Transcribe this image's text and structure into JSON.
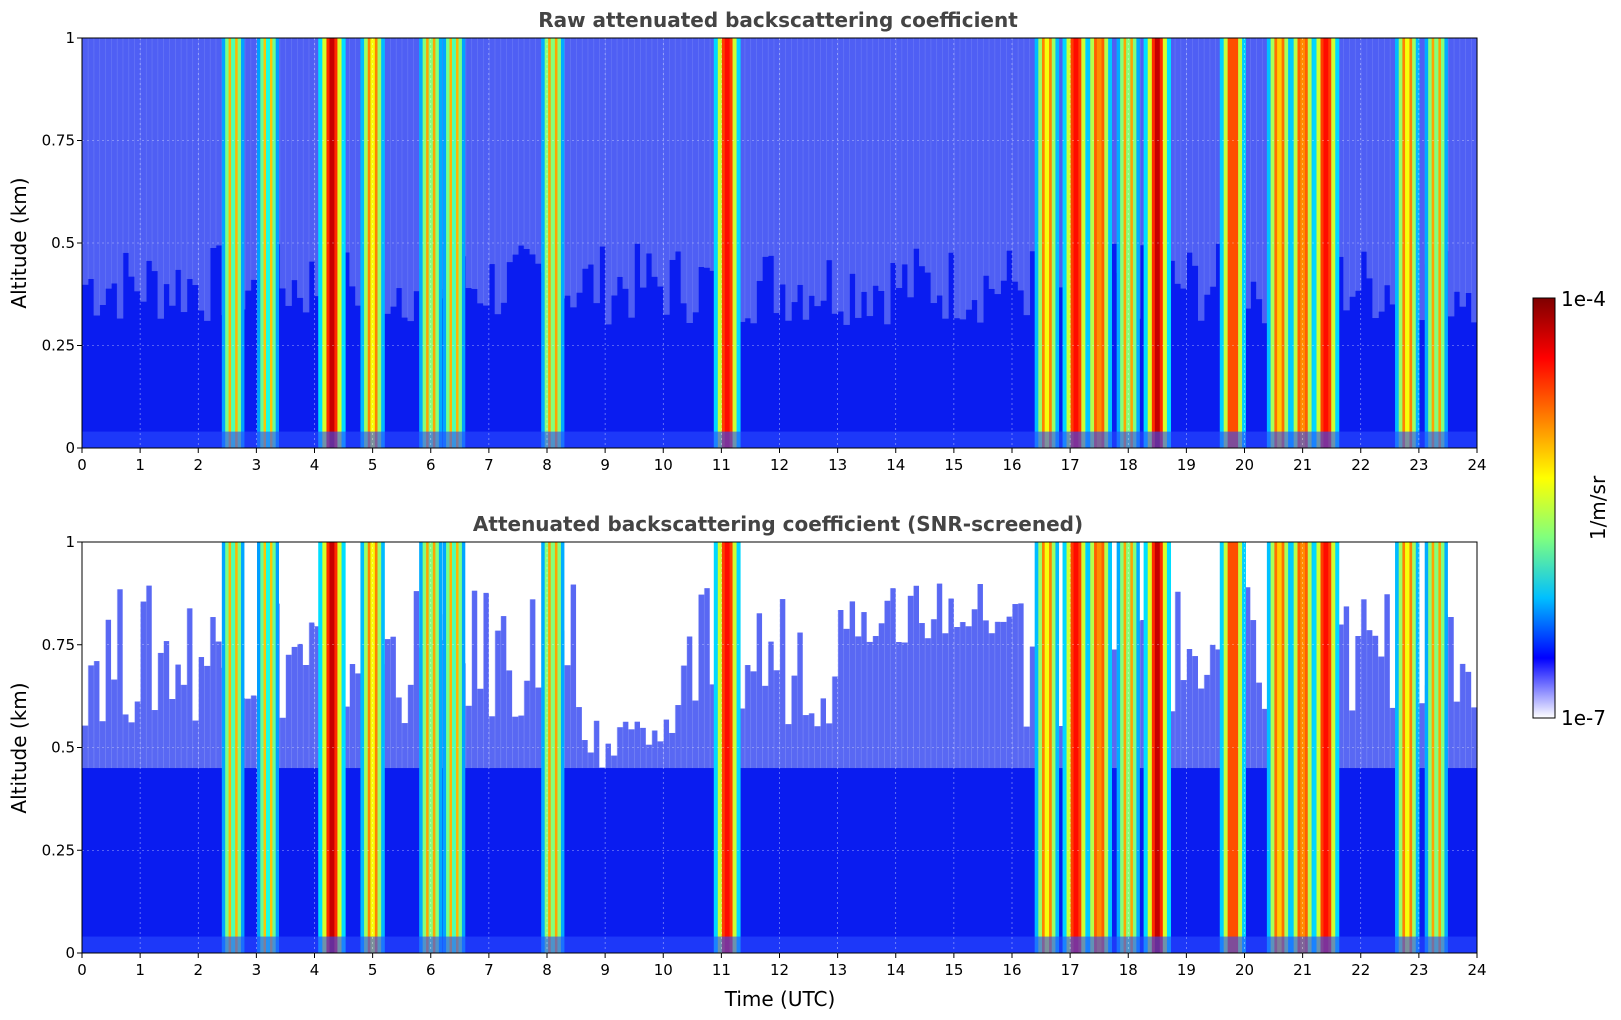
{
  "chart_data": [
    {
      "type": "heatmap",
      "title": "Raw attenuated backscattering coefficient",
      "xlabel": "",
      "ylabel": "Altitude (km)",
      "xlim": [
        0,
        24
      ],
      "ylim": [
        0,
        1
      ],
      "xticks": [
        "0",
        "1",
        "2",
        "3",
        "4",
        "5",
        "6",
        "7",
        "8",
        "9",
        "10",
        "11",
        "12",
        "13",
        "14",
        "15",
        "16",
        "17",
        "18",
        "19",
        "20",
        "21",
        "22",
        "23",
        "24"
      ],
      "yticks": [
        "0",
        "0.25",
        "0.5",
        "0.75",
        "1"
      ],
      "grid": true,
      "screened": false,
      "cloud_events": [
        {
          "time": 2.6,
          "intensity": 0.55
        },
        {
          "time": 3.2,
          "intensity": 0.5
        },
        {
          "time": 4.3,
          "intensity": 0.95
        },
        {
          "time": 5.0,
          "intensity": 0.7
        },
        {
          "time": 6.0,
          "intensity": 0.6
        },
        {
          "time": 6.4,
          "intensity": 0.55
        },
        {
          "time": 8.1,
          "intensity": 0.6
        },
        {
          "time": 11.1,
          "intensity": 0.9
        },
        {
          "time": 16.6,
          "intensity": 0.7
        },
        {
          "time": 17.1,
          "intensity": 0.9
        },
        {
          "time": 17.5,
          "intensity": 0.8
        },
        {
          "time": 18.0,
          "intensity": 0.6
        },
        {
          "time": 18.5,
          "intensity": 0.95
        },
        {
          "time": 19.8,
          "intensity": 0.85
        },
        {
          "time": 20.6,
          "intensity": 0.75
        },
        {
          "time": 21.0,
          "intensity": 0.8
        },
        {
          "time": 21.4,
          "intensity": 0.9
        },
        {
          "time": 22.8,
          "intensity": 0.7
        },
        {
          "time": 23.3,
          "intensity": 0.6
        }
      ]
    },
    {
      "type": "heatmap",
      "title": "Attenuated backscattering coefficient (SNR-screened)",
      "xlabel": "Time (UTC)",
      "ylabel": "Altitude (km)",
      "xlim": [
        0,
        24
      ],
      "ylim": [
        0,
        1
      ],
      "xticks": [
        "0",
        "1",
        "2",
        "3",
        "4",
        "5",
        "6",
        "7",
        "8",
        "9",
        "10",
        "11",
        "12",
        "13",
        "14",
        "15",
        "16",
        "17",
        "18",
        "19",
        "20",
        "21",
        "22",
        "23",
        "24"
      ],
      "yticks": [
        "0",
        "0.25",
        "0.5",
        "0.75",
        "1"
      ],
      "grid": true,
      "screened": true,
      "cloud_events": [
        {
          "time": 2.6,
          "intensity": 0.55
        },
        {
          "time": 3.2,
          "intensity": 0.5
        },
        {
          "time": 4.3,
          "intensity": 0.95
        },
        {
          "time": 5.0,
          "intensity": 0.7
        },
        {
          "time": 6.0,
          "intensity": 0.6
        },
        {
          "time": 6.4,
          "intensity": 0.55
        },
        {
          "time": 8.1,
          "intensity": 0.6
        },
        {
          "time": 11.1,
          "intensity": 0.9
        },
        {
          "time": 16.6,
          "intensity": 0.7
        },
        {
          "time": 17.1,
          "intensity": 0.9
        },
        {
          "time": 17.5,
          "intensity": 0.8
        },
        {
          "time": 18.0,
          "intensity": 0.6
        },
        {
          "time": 18.5,
          "intensity": 0.95
        },
        {
          "time": 19.8,
          "intensity": 0.85
        },
        {
          "time": 20.6,
          "intensity": 0.75
        },
        {
          "time": 21.0,
          "intensity": 0.8
        },
        {
          "time": 21.4,
          "intensity": 0.9
        },
        {
          "time": 22.8,
          "intensity": 0.7
        },
        {
          "time": 23.3,
          "intensity": 0.6
        }
      ]
    }
  ],
  "colorbar": {
    "label": "1/m/sr",
    "max_label": "1e-4",
    "min_label": "1e-7",
    "colors": [
      "#ffffff",
      "#0000ff",
      "#00bfff",
      "#7fff7f",
      "#ffff00",
      "#ff7f00",
      "#ff0000",
      "#7f0000"
    ]
  }
}
